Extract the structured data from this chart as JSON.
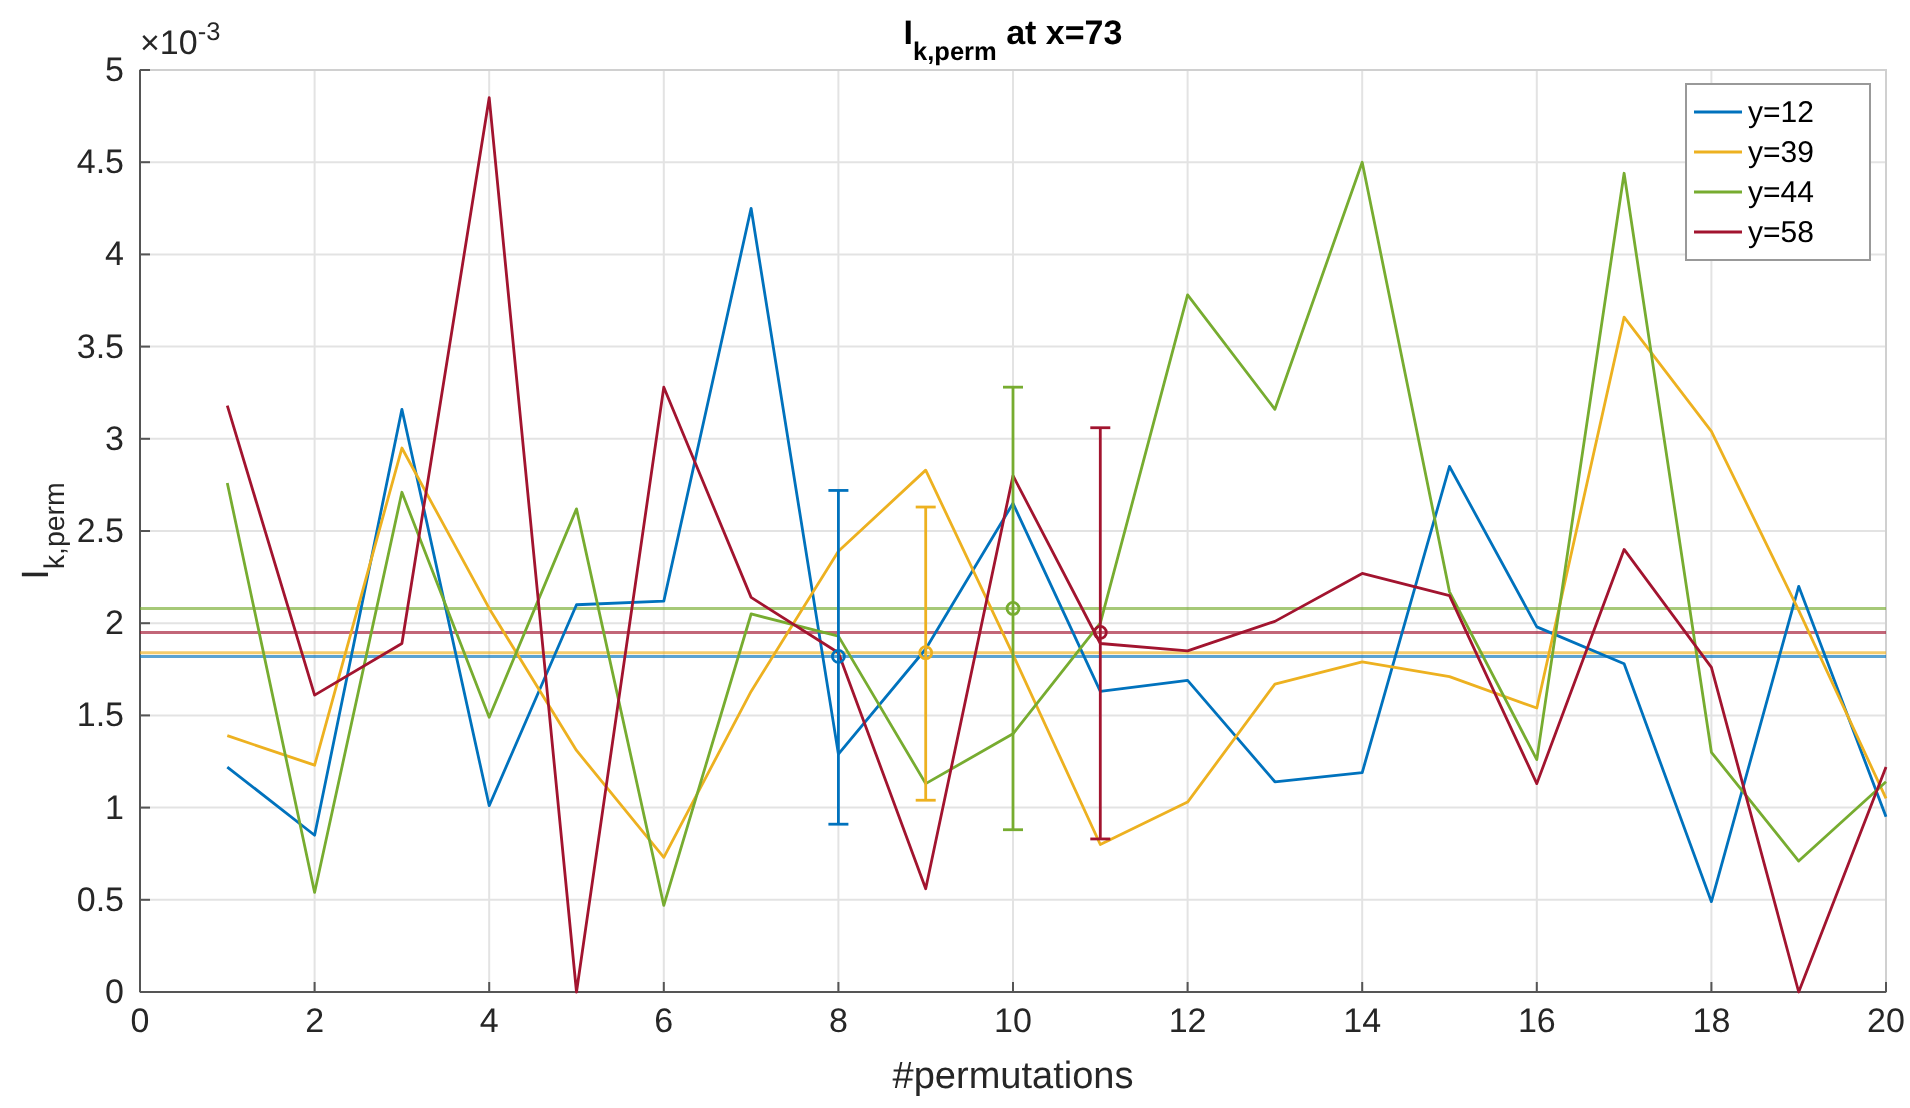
{
  "chart_data": {
    "type": "line",
    "title": "I$_{k,perm}$ at x=73",
    "xlabel": "#permutations",
    "ylabel": "I$_{k,perm}$",
    "annotations": [
      "×10$^{-3}$"
    ],
    "x": [
      1,
      2,
      3,
      4,
      5,
      6,
      7,
      8,
      9,
      10,
      11,
      12,
      13,
      14,
      15,
      16,
      17,
      18,
      19,
      20
    ],
    "series": [
      {
        "name": "y=12",
        "color": "#0072bd",
        "values": [
          1.22,
          0.85,
          3.16,
          1.01,
          2.1,
          2.12,
          4.25,
          1.29,
          1.86,
          2.65,
          1.63,
          1.69,
          1.14,
          1.19,
          2.85,
          1.98,
          1.78,
          0.49,
          2.2,
          0.95
        ]
      },
      {
        "name": "y=39",
        "color": "#edb120",
        "values": [
          1.39,
          1.23,
          2.95,
          2.08,
          1.31,
          0.73,
          1.63,
          2.39,
          2.83,
          1.83,
          0.8,
          1.03,
          1.67,
          1.79,
          1.71,
          1.54,
          3.66,
          3.04,
          2.07,
          1.05
        ]
      },
      {
        "name": "y=44",
        "color": "#77ac30",
        "values": [
          2.76,
          0.54,
          2.71,
          1.49,
          2.62,
          0.47,
          2.05,
          1.93,
          1.13,
          1.4,
          2.0,
          3.78,
          3.16,
          4.5,
          2.17,
          1.26,
          4.44,
          1.3,
          0.71,
          1.14
        ]
      },
      {
        "name": "y=58",
        "color": "#a2142f",
        "values": [
          3.18,
          1.61,
          1.89,
          4.85,
          0.0,
          3.28,
          2.14,
          1.84,
          0.56,
          2.8,
          1.89,
          1.85,
          2.01,
          2.27,
          2.15,
          1.13,
          2.4,
          1.76,
          0.0,
          1.22
        ]
      },
      {
        "type": "scatter",
        "marker": "circle",
        "color": "#0072bd",
        "x": [
          8
        ],
        "values": [
          1.82
        ],
        "errors": [
          [
            0.91,
            2.72
          ]
        ]
      },
      {
        "type": "scatter",
        "marker": "circle",
        "color": "#edb120",
        "x": [
          9
        ],
        "values": [
          1.84
        ],
        "errors": [
          [
            1.04,
            2.63
          ]
        ]
      },
      {
        "type": "scatter",
        "marker": "circle",
        "color": "#77ac30",
        "x": [
          10
        ],
        "values": [
          2.08
        ],
        "errors": [
          [
            0.88,
            3.28
          ]
        ]
      },
      {
        "type": "scatter",
        "marker": "circle",
        "color": "#a2142f",
        "x": [
          11
        ],
        "values": [
          1.95
        ],
        "errors": [
          [
            0.83,
            3.06
          ]
        ]
      }
    ],
    "ref_lines": [
      {
        "axis": "y",
        "value": 1.82,
        "color": "#0072bd"
      },
      {
        "axis": "y",
        "value": 1.84,
        "color": "#edb120"
      },
      {
        "axis": "y",
        "value": 2.08,
        "color": "#77ac30"
      },
      {
        "axis": "y",
        "value": 1.95,
        "color": "#a2142f"
      }
    ],
    "xlim": [
      0,
      20
    ],
    "xticks": [
      0,
      2,
      4,
      6,
      8,
      10,
      12,
      14,
      16,
      18,
      20
    ],
    "ylim": [
      0,
      5
    ],
    "yticks": [
      0,
      0.5,
      1,
      1.5,
      2,
      2.5,
      3,
      3.5,
      4,
      4.5,
      5
    ],
    "grid": true,
    "legend": "top right",
    "line_style": "solid"
  }
}
